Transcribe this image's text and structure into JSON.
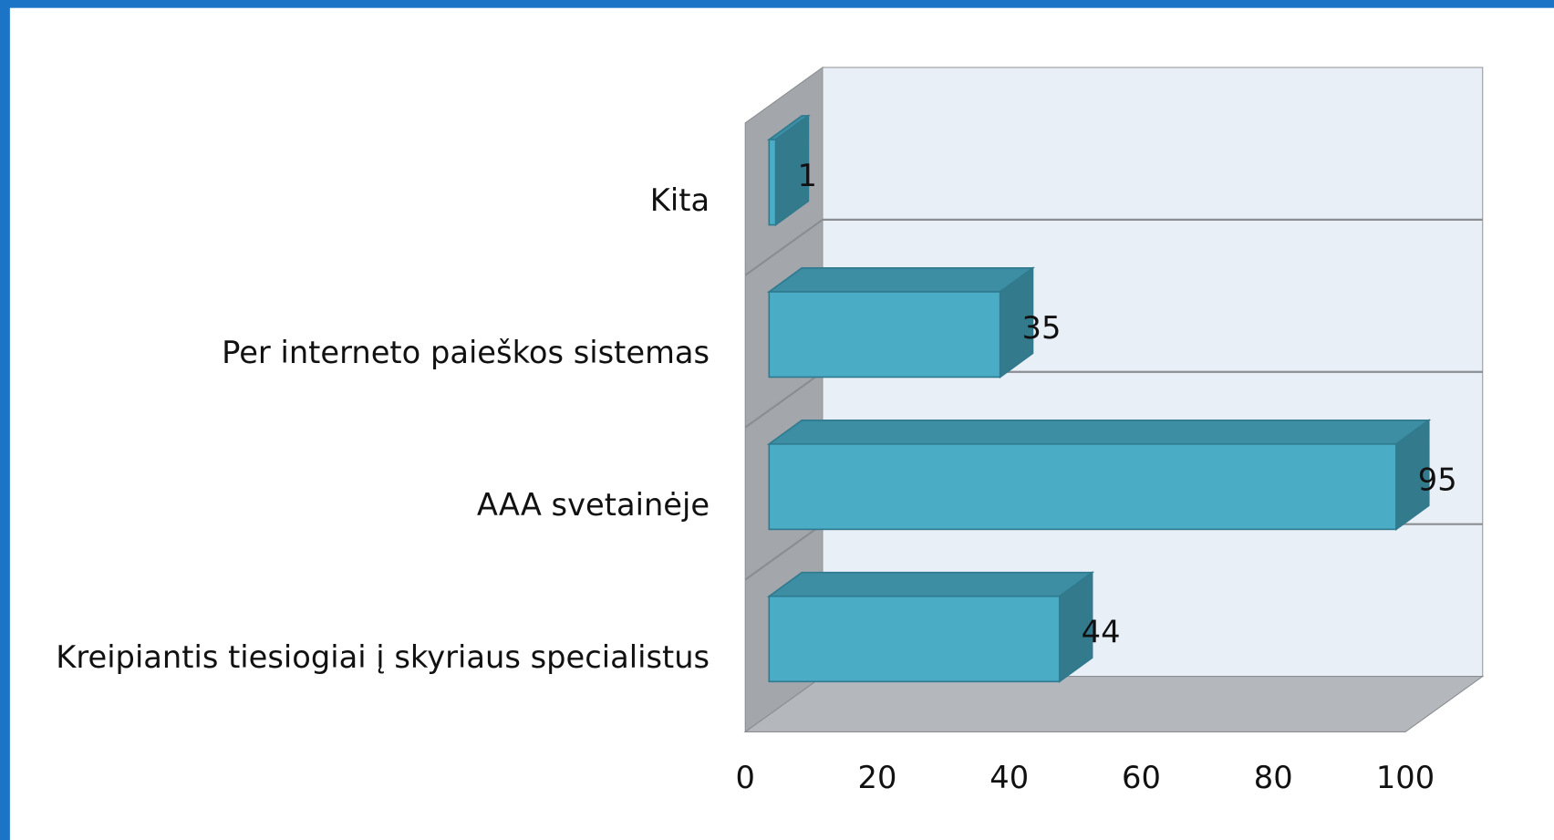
{
  "chart_data": {
    "type": "bar3d_horizontal",
    "categories": [
      "Kreipiantis tiesiogiai į skyriaus specialistus",
      "AAA svetainėje",
      "Per interneto paieškos sistemas",
      "Kita"
    ],
    "values": [
      44,
      95,
      35,
      1
    ],
    "color": "#4bacc6",
    "xlim": [
      0,
      100
    ],
    "xticks": [
      0,
      20,
      40,
      60,
      80,
      100
    ]
  }
}
